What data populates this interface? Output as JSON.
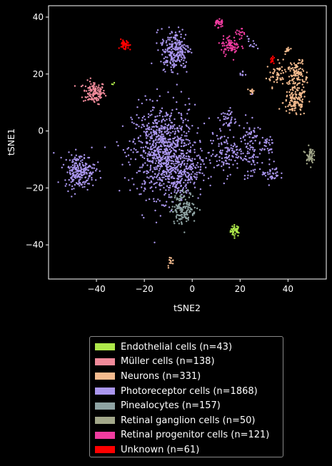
{
  "chart_data": {
    "type": "scatter",
    "title": "",
    "xlabel": "tSNE2",
    "ylabel": "tSNE1",
    "xlim": [
      -60,
      56
    ],
    "ylim": [
      -52,
      44
    ],
    "xticks": [
      -40,
      -20,
      0,
      20,
      40
    ],
    "yticks": [
      -40,
      -20,
      0,
      20,
      40
    ],
    "xtick_labels": [
      "−40",
      "−20",
      "0",
      "20",
      "40"
    ],
    "ytick_labels": [
      "−40",
      "−20",
      "0",
      "20",
      "40"
    ],
    "grid": false,
    "legend_position": "below",
    "series": [
      {
        "name": "Endothelial cells (n=43)",
        "color": "#aee84a",
        "clusters": [
          {
            "cx": 18,
            "cy": -35,
            "sx": 1.0,
            "sy": 1.0,
            "n": 40
          },
          {
            "cx": -33,
            "cy": 16.5,
            "sx": 0.3,
            "sy": 0.3,
            "n": 3
          }
        ]
      },
      {
        "name": "Müller cells (n=138)",
        "color": "#f08a9a",
        "clusters": [
          {
            "cx": -41,
            "cy": 13.5,
            "sx": 2.3,
            "sy": 2.0,
            "n": 138
          }
        ]
      },
      {
        "name": "Neurons (n=331)",
        "color": "#f5bb8e",
        "clusters": [
          {
            "cx": 36,
            "cy": 20,
            "sx": 2.5,
            "sy": 2.2,
            "n": 60
          },
          {
            "cx": 44,
            "cy": 18,
            "sx": 2.2,
            "sy": 3.0,
            "n": 90
          },
          {
            "cx": 43,
            "cy": 10,
            "sx": 2.5,
            "sy": 2.5,
            "n": 110
          },
          {
            "cx": 40,
            "cy": 28.5,
            "sx": 0.5,
            "sy": 0.6,
            "n": 15
          },
          {
            "cx": 25,
            "cy": 14,
            "sx": 0.6,
            "sy": 0.6,
            "n": 12
          },
          {
            "cx": 44,
            "cy": 22,
            "sx": 1.6,
            "sy": 1.2,
            "n": 30
          },
          {
            "cx": -9,
            "cy": -46,
            "sx": 0.7,
            "sy": 1.0,
            "n": 14
          }
        ]
      },
      {
        "name": "Photoreceptor cells (n=1868)",
        "color": "#aa96ee",
        "clusters": [
          {
            "cx": -12,
            "cy": -7,
            "sx": 6.5,
            "sy": 8.0,
            "n": 850
          },
          {
            "cx": -5,
            "cy": -15,
            "sx": 4.5,
            "sy": 4.0,
            "n": 200
          },
          {
            "cx": -7,
            "cy": 29,
            "sx": 3.0,
            "sy": 3.5,
            "n": 200
          },
          {
            "cx": -8,
            "cy": 24,
            "sx": 2.0,
            "sy": 1.5,
            "n": 40
          },
          {
            "cx": -47,
            "cy": -14,
            "sx": 3.2,
            "sy": 3.0,
            "n": 230
          },
          {
            "cx": 15,
            "cy": 4,
            "sx": 1.7,
            "sy": 2.0,
            "n": 40
          },
          {
            "cx": 14,
            "cy": -8,
            "sx": 3.5,
            "sy": 3.5,
            "n": 120
          },
          {
            "cx": 24,
            "cy": -5,
            "sx": 2.5,
            "sy": 5.0,
            "n": 90
          },
          {
            "cx": 31,
            "cy": -5,
            "sx": 1.5,
            "sy": 1.5,
            "n": 30
          },
          {
            "cx": 33,
            "cy": -15,
            "sx": 1.8,
            "sy": 1.8,
            "n": 40
          },
          {
            "cx": 25,
            "cy": 31,
            "sx": 1.0,
            "sy": 1.2,
            "n": 12
          },
          {
            "cx": 21,
            "cy": 20,
            "sx": 0.6,
            "sy": 0.6,
            "n": 8
          },
          {
            "cx": 25,
            "cy": -14,
            "sx": 1.2,
            "sy": 1.4,
            "n": 8
          }
        ]
      },
      {
        "name": "Pinealocytes (n=157)",
        "color": "#8ea3a3",
        "clusters": [
          {
            "cx": -3.5,
            "cy": -27,
            "sx": 2.6,
            "sy": 2.8,
            "n": 157
          }
        ]
      },
      {
        "name": "Retinal ganglion cells (n=50)",
        "color": "#a3a88a",
        "clusters": [
          {
            "cx": 49,
            "cy": -8.5,
            "sx": 0.8,
            "sy": 1.4,
            "n": 50
          }
        ]
      },
      {
        "name": "Retinal progenitor cells (n=121)",
        "color": "#f03ca0",
        "clusters": [
          {
            "cx": 11,
            "cy": 38,
            "sx": 1.0,
            "sy": 0.9,
            "n": 30
          },
          {
            "cx": 16,
            "cy": 30,
            "sx": 2.0,
            "sy": 1.6,
            "n": 75
          },
          {
            "cx": 20,
            "cy": 34,
            "sx": 1.0,
            "sy": 1.0,
            "n": 16
          }
        ]
      },
      {
        "name": "Unknown (n=61)",
        "color": "#ff0000",
        "clusters": [
          {
            "cx": -28,
            "cy": 30,
            "sx": 0.9,
            "sy": 1.0,
            "n": 46
          },
          {
            "cx": 33.5,
            "cy": 25,
            "sx": 0.4,
            "sy": 0.9,
            "n": 15
          }
        ]
      }
    ]
  }
}
